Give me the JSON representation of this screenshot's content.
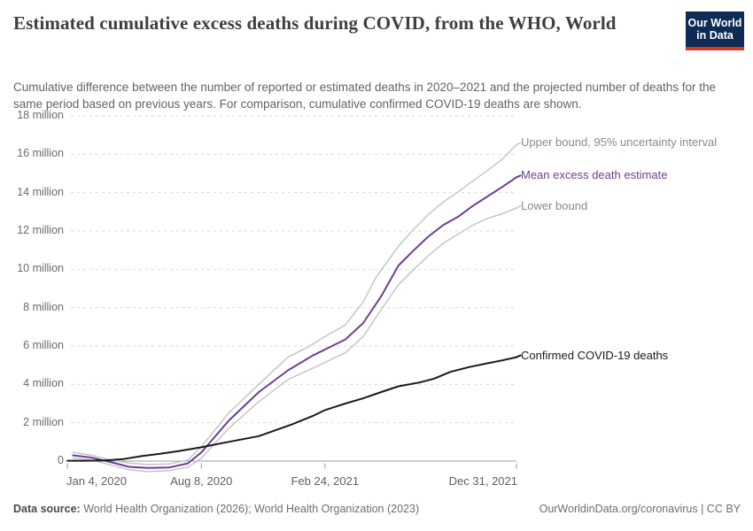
{
  "header": {
    "title": "Estimated cumulative excess deaths during COVID, from the WHO, World",
    "subtitle": "Cumulative difference between the number of reported or estimated deaths in 2020–2021 and the projected number of deaths for the same period based on previous years. For comparison, cumulative confirmed COVID-19 deaths are shown.",
    "logo": {
      "line1": "Our World",
      "line2": "in Data"
    }
  },
  "footer": {
    "datasource_label": "Data source:",
    "datasource_text": " World Health Organization (2026); World Health Organization (2023)",
    "link_text": "OurWorldinData.org/coronavirus | CC BY"
  },
  "chart_data": {
    "type": "line",
    "title": "Estimated cumulative excess deaths during COVID, from the WHO, World",
    "xlabel": "",
    "ylabel": "",
    "grid": "dashed-horizontal",
    "legend_position": "right-of-line-ends",
    "x_axis": {
      "unit": "date",
      "range_days": [
        0,
        727
      ],
      "tick_days": [
        0,
        217,
        417,
        727
      ],
      "tick_labels": [
        "Jan 4, 2020",
        "Aug 8, 2020",
        "Feb 24, 2021",
        "Dec 31, 2021"
      ],
      "tick_align": [
        "start",
        "middle",
        "middle",
        "end"
      ]
    },
    "y_axis": {
      "unit": "deaths",
      "ylim_millions": [
        -0.7,
        18
      ],
      "ticks": [
        {
          "value": 0,
          "label": "0"
        },
        {
          "value": 2,
          "label": "2 million"
        },
        {
          "value": 4,
          "label": "4 million"
        },
        {
          "value": 6,
          "label": "6 million"
        },
        {
          "value": 8,
          "label": "8 million"
        },
        {
          "value": 10,
          "label": "10 million"
        },
        {
          "value": 12,
          "label": "12 million"
        },
        {
          "value": 14,
          "label": "14 million"
        },
        {
          "value": 16,
          "label": "16 million"
        },
        {
          "value": 18,
          "label": "18 million"
        }
      ]
    },
    "colors": {
      "bounds_line": "#c6c6c6",
      "mean_line": "#6d3e91",
      "confirmed_line": "#1a1a1a",
      "gridline": "#d9d9d9",
      "zero_line": "#9c9c9c",
      "tick": "#999999",
      "bounds_label": "#8a8a8a"
    },
    "series": [
      {
        "id": "upper",
        "name": "Upper bound, 95% uncertainty interval",
        "color": "#c6c6c6",
        "width": 1.5,
        "label_color": "#8a8a8a",
        "points_day_millions": [
          [
            9,
            0.45
          ],
          [
            40,
            0.3
          ],
          [
            70,
            0.06
          ],
          [
            100,
            -0.1
          ],
          [
            130,
            -0.18
          ],
          [
            165,
            -0.15
          ],
          [
            195,
            0.05
          ],
          [
            217,
            0.75
          ],
          [
            261,
            2.5
          ],
          [
            310,
            4.0
          ],
          [
            357,
            5.42
          ],
          [
            390,
            5.96
          ],
          [
            420,
            6.55
          ],
          [
            450,
            7.1
          ],
          [
            479,
            8.3
          ],
          [
            500,
            9.6
          ],
          [
            536,
            11.2
          ],
          [
            561,
            12.1
          ],
          [
            584,
            12.85
          ],
          [
            608,
            13.5
          ],
          [
            633,
            14.05
          ],
          [
            656,
            14.6
          ],
          [
            680,
            15.15
          ],
          [
            704,
            15.75
          ],
          [
            727,
            16.5
          ]
        ]
      },
      {
        "id": "lower",
        "name": "Lower bound",
        "color": "#c6c6c6",
        "width": 1.5,
        "label_color": "#8a8a8a",
        "points_day_millions": [
          [
            9,
            0.16
          ],
          [
            40,
            0.05
          ],
          [
            70,
            -0.2
          ],
          [
            100,
            -0.45
          ],
          [
            130,
            -0.55
          ],
          [
            165,
            -0.5
          ],
          [
            195,
            -0.32
          ],
          [
            217,
            0.15
          ],
          [
            261,
            1.7
          ],
          [
            310,
            3.1
          ],
          [
            357,
            4.25
          ],
          [
            397,
            4.84
          ],
          [
            450,
            5.65
          ],
          [
            479,
            6.5
          ],
          [
            508,
            7.9
          ],
          [
            536,
            9.2
          ],
          [
            561,
            10.0
          ],
          [
            584,
            10.7
          ],
          [
            608,
            11.35
          ],
          [
            633,
            11.85
          ],
          [
            656,
            12.3
          ],
          [
            680,
            12.65
          ],
          [
            704,
            12.9
          ],
          [
            727,
            13.2
          ]
        ]
      },
      {
        "id": "mean",
        "name": "Mean excess death estimate",
        "color": "#6d3e91",
        "width": 2,
        "label_color": "#6d3e91",
        "points_day_millions": [
          [
            9,
            0.3
          ],
          [
            40,
            0.18
          ],
          [
            70,
            -0.05
          ],
          [
            100,
            -0.3
          ],
          [
            130,
            -0.36
          ],
          [
            165,
            -0.33
          ],
          [
            195,
            -0.12
          ],
          [
            217,
            0.45
          ],
          [
            261,
            2.1
          ],
          [
            310,
            3.6
          ],
          [
            357,
            4.73
          ],
          [
            397,
            5.5
          ],
          [
            450,
            6.34
          ],
          [
            479,
            7.2
          ],
          [
            508,
            8.6
          ],
          [
            536,
            10.2
          ],
          [
            561,
            11.0
          ],
          [
            584,
            11.7
          ],
          [
            608,
            12.3
          ],
          [
            633,
            12.75
          ],
          [
            656,
            13.3
          ],
          [
            680,
            13.8
          ],
          [
            704,
            14.3
          ],
          [
            727,
            14.8
          ]
        ]
      },
      {
        "id": "confirmed",
        "name": "Confirmed COVID-19 deaths",
        "color": "#1a1a1a",
        "width": 2,
        "label_color": "#1a1a1a",
        "points_day_millions": [
          [
            0,
            0.02
          ],
          [
            30,
            0.02
          ],
          [
            60,
            0.03
          ],
          [
            90,
            0.1
          ],
          [
            120,
            0.26
          ],
          [
            150,
            0.38
          ],
          [
            180,
            0.52
          ],
          [
            217,
            0.72
          ],
          [
            261,
            1.0
          ],
          [
            310,
            1.3
          ],
          [
            364,
            1.92
          ],
          [
            397,
            2.35
          ],
          [
            417,
            2.66
          ],
          [
            450,
            3.0
          ],
          [
            479,
            3.27
          ],
          [
            508,
            3.6
          ],
          [
            536,
            3.9
          ],
          [
            570,
            4.1
          ],
          [
            594,
            4.3
          ],
          [
            620,
            4.65
          ],
          [
            650,
            4.9
          ],
          [
            680,
            5.1
          ],
          [
            704,
            5.25
          ],
          [
            727,
            5.42
          ]
        ]
      }
    ]
  }
}
